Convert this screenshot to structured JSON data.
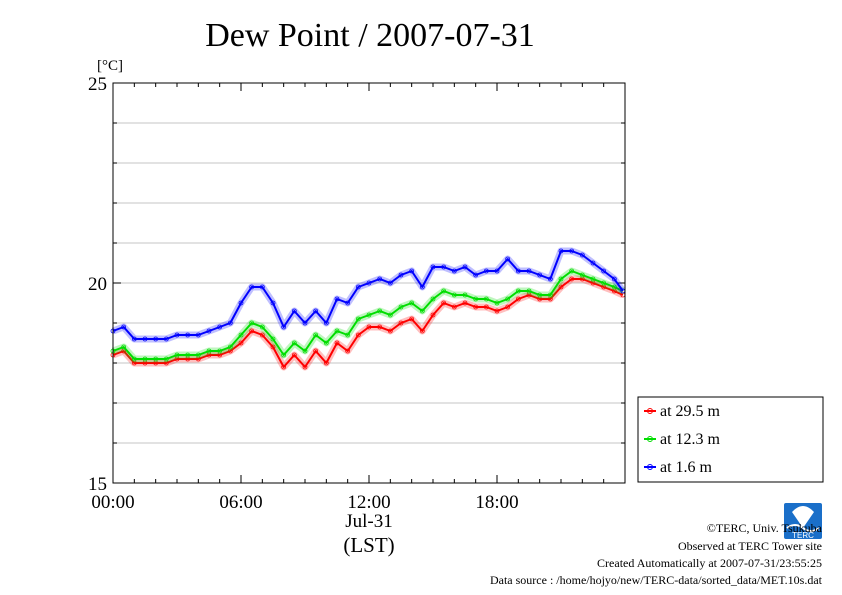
{
  "chart_data": {
    "type": "line",
    "title": "Dew Point / 2007-07-31",
    "ylabel": "[°C]",
    "xlabel": "(LST)",
    "x_date_label": "Jul-31",
    "ylim": [
      15,
      25
    ],
    "y_ticks": [
      "15",
      "20",
      "25"
    ],
    "x_ticks": [
      "00:00",
      "06:00",
      "12:00",
      "18:00"
    ],
    "xlim_hours": [
      0,
      24
    ],
    "grid": true,
    "legend_position": "right",
    "x_hours": [
      0,
      0.5,
      1,
      1.5,
      2,
      2.5,
      3,
      3.5,
      4,
      4.5,
      5,
      5.5,
      6,
      6.5,
      7,
      7.5,
      8,
      8.5,
      9,
      9.5,
      10,
      10.5,
      11,
      11.5,
      12,
      12.5,
      13,
      13.5,
      14,
      14.5,
      15,
      15.5,
      16,
      16.5,
      17,
      17.5,
      18,
      18.5,
      19,
      19.5,
      20,
      20.5,
      21,
      21.5,
      22,
      22.5,
      23,
      23.5,
      23.9
    ],
    "series": [
      {
        "name": "at 29.5 m",
        "color": "#ff0000",
        "values": [
          18.2,
          18.3,
          18.0,
          18.0,
          18.0,
          18.0,
          18.1,
          18.1,
          18.1,
          18.2,
          18.2,
          18.3,
          18.5,
          18.8,
          18.7,
          18.4,
          17.9,
          18.2,
          17.9,
          18.3,
          18.0,
          18.5,
          18.3,
          18.7,
          18.9,
          18.9,
          18.8,
          19.0,
          19.1,
          18.8,
          19.2,
          19.5,
          19.4,
          19.5,
          19.4,
          19.4,
          19.3,
          19.4,
          19.6,
          19.7,
          19.6,
          19.6,
          19.9,
          20.1,
          20.1,
          20.0,
          19.9,
          19.8,
          19.7
        ]
      },
      {
        "name": "at 12.3 m",
        "color": "#00dd00",
        "values": [
          18.3,
          18.4,
          18.1,
          18.1,
          18.1,
          18.1,
          18.2,
          18.2,
          18.2,
          18.3,
          18.3,
          18.4,
          18.7,
          19.0,
          18.9,
          18.6,
          18.2,
          18.5,
          18.3,
          18.7,
          18.5,
          18.8,
          18.7,
          19.1,
          19.2,
          19.3,
          19.2,
          19.4,
          19.5,
          19.3,
          19.6,
          19.8,
          19.7,
          19.7,
          19.6,
          19.6,
          19.5,
          19.6,
          19.8,
          19.8,
          19.7,
          19.7,
          20.1,
          20.3,
          20.2,
          20.1,
          20.0,
          19.9,
          19.8
        ]
      },
      {
        "name": "at 1.6 m",
        "color": "#0000ff",
        "values": [
          18.8,
          18.9,
          18.6,
          18.6,
          18.6,
          18.6,
          18.7,
          18.7,
          18.7,
          18.8,
          18.9,
          19.0,
          19.5,
          19.9,
          19.9,
          19.5,
          18.9,
          19.3,
          19.0,
          19.3,
          19.0,
          19.6,
          19.5,
          19.9,
          20.0,
          20.1,
          20.0,
          20.2,
          20.3,
          19.9,
          20.4,
          20.4,
          20.3,
          20.4,
          20.2,
          20.3,
          20.3,
          20.6,
          20.3,
          20.3,
          20.2,
          20.1,
          20.8,
          20.8,
          20.7,
          20.5,
          20.3,
          20.1,
          19.8
        ]
      }
    ]
  },
  "credits": {
    "org": "©TERC, Univ. Tsukuba",
    "site": "Observed at TERC Tower site",
    "created": "Created Automatically at 2007-07-31/23:55:25",
    "source": "Data source : /home/hojyo/new/TERC-data/sorted_data/MET.10s.dat",
    "logo_text": "TERC"
  }
}
